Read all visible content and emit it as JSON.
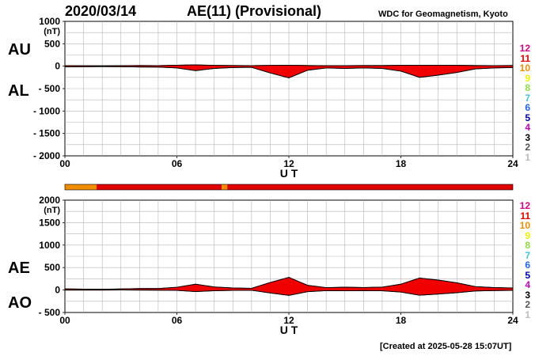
{
  "header": {
    "date": "2020/03/14",
    "title": "AE(11) (Provisional)",
    "source": "WDC for Geomagnetism, Kyoto"
  },
  "footer": {
    "created": "[Created at 2025-05-28 15:07UT]"
  },
  "level_legend": {
    "labels": [
      "12",
      "11",
      "10",
      "9",
      "8",
      "7",
      "6",
      "5",
      "4",
      "3",
      "2",
      "1"
    ],
    "colors": [
      "#e0007f",
      "#e00000",
      "#f08c00",
      "#f0f000",
      "#8ce03c",
      "#3cc8dc",
      "#1e64f0",
      "#0000b4",
      "#c800c8",
      "#000000",
      "#555555",
      "#bbbbbb"
    ]
  },
  "chart_data": [
    {
      "type": "area",
      "series": [
        {
          "name": "AU",
          "x": [
            0,
            1,
            2,
            3,
            4,
            5,
            6,
            7,
            8,
            9,
            10,
            11,
            12,
            13,
            14,
            15,
            16,
            17,
            18,
            19,
            20,
            21,
            22,
            23,
            24
          ],
          "values": [
            12,
            10,
            8,
            12,
            15,
            14,
            22,
            30,
            18,
            15,
            14,
            18,
            22,
            16,
            12,
            14,
            16,
            16,
            20,
            18,
            22,
            20,
            16,
            14,
            15
          ]
        },
        {
          "name": "AL",
          "x": [
            0,
            1,
            2,
            3,
            4,
            5,
            6,
            7,
            8,
            9,
            10,
            11,
            12,
            13,
            14,
            15,
            16,
            17,
            18,
            19,
            20,
            21,
            22,
            23,
            24
          ],
          "values": [
            -15,
            -12,
            -10,
            -12,
            -18,
            -20,
            -40,
            -100,
            -50,
            -30,
            -25,
            -150,
            -260,
            -90,
            -40,
            -50,
            -40,
            -50,
            -110,
            -250,
            -200,
            -140,
            -60,
            -40,
            -30
          ]
        }
      ],
      "ylabels": {
        "upper": "AU",
        "lower": "AL"
      },
      "yunit": "(nT)",
      "yticks": [
        1000,
        500,
        0,
        -500,
        -1000,
        -1500,
        -2000
      ],
      "ylim": [
        -2000,
        1000
      ],
      "xticks": [
        "00",
        "06",
        "12",
        "18",
        "24"
      ],
      "xlabel": "U T",
      "xlim": [
        0,
        24
      ],
      "grid": true
    },
    {
      "type": "area",
      "series": [
        {
          "name": "AE",
          "x": [
            0,
            1,
            2,
            3,
            4,
            5,
            6,
            7,
            8,
            9,
            10,
            11,
            12,
            13,
            14,
            15,
            16,
            17,
            18,
            19,
            20,
            21,
            22,
            23,
            24
          ],
          "values": [
            27,
            22,
            18,
            24,
            33,
            34,
            62,
            130,
            68,
            45,
            39,
            168,
            282,
            106,
            52,
            64,
            56,
            66,
            130,
            268,
            222,
            160,
            76,
            54,
            45
          ]
        },
        {
          "name": "AO",
          "x": [
            0,
            1,
            2,
            3,
            4,
            5,
            6,
            7,
            8,
            9,
            10,
            11,
            12,
            13,
            14,
            15,
            16,
            17,
            18,
            19,
            20,
            21,
            22,
            23,
            24
          ],
          "values": [
            -2,
            -1,
            -1,
            0,
            -2,
            -3,
            -9,
            -35,
            -16,
            -8,
            -6,
            -66,
            -119,
            -37,
            -14,
            -18,
            -12,
            -17,
            -45,
            -116,
            -89,
            -60,
            -22,
            -13,
            -8
          ]
        }
      ],
      "ylabels": {
        "upper": "AE",
        "lower": "AO"
      },
      "yunit": "(nT)",
      "yticks": [
        2000,
        1500,
        1000,
        500,
        0,
        -500
      ],
      "ylim": [
        -500,
        2000
      ],
      "xticks": [
        "00",
        "06",
        "12",
        "18",
        "24"
      ],
      "xlabel": "U T",
      "xlim": [
        0,
        24
      ],
      "grid": true
    }
  ],
  "data_level_strip": {
    "x": [
      0,
      1.7,
      8.4,
      8.7,
      24
    ],
    "levels": [
      "10",
      "11",
      "10",
      "11"
    ]
  }
}
